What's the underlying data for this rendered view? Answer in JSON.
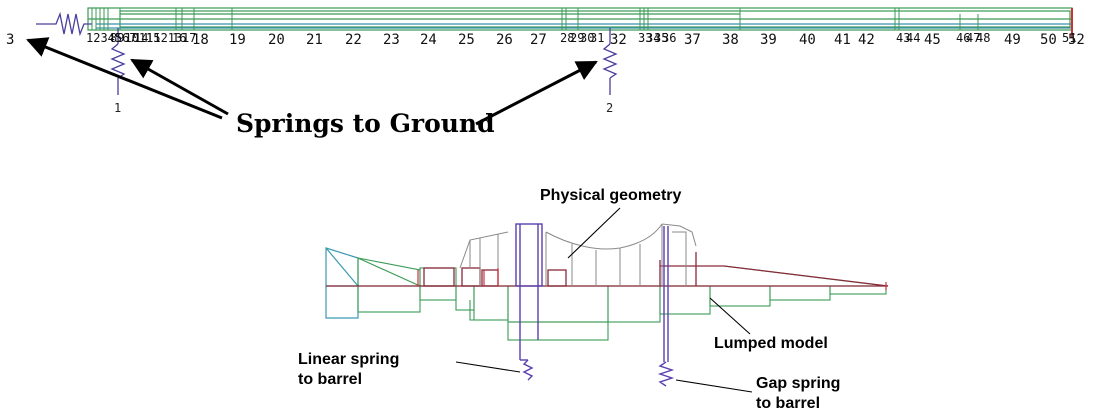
{
  "top_beam_model": {
    "node_numbers": [
      "18",
      "19",
      "20",
      "21",
      "22",
      "23",
      "24",
      "25",
      "26",
      "27",
      "32",
      "37",
      "38",
      "39",
      "40",
      "41",
      "42",
      "45",
      "49",
      "50",
      "52"
    ],
    "dense_node_clusters": [
      "1234567",
      "8910111213",
      "14",
      "15",
      "16",
      "17",
      "28",
      "29",
      "30",
      "31",
      "33",
      "34",
      "35",
      "36",
      "43",
      "44",
      "46",
      "47",
      "48",
      "51"
    ],
    "left_end_node": "3",
    "spring_ids": [
      "1",
      "2"
    ],
    "callout": "Springs to Ground",
    "colors": {
      "beam": "#3a9a55",
      "shaft": "#3a8fb0",
      "spring": "#4a3f9c",
      "end": "#cc3333"
    }
  },
  "bottom_geometry_model": {
    "label_physical": "Physical geometry",
    "label_lumped": "Lumped model",
    "label_linear_spring_line1": "Linear spring",
    "label_linear_spring_line2": "to barrel",
    "label_gap_spring_line1": "Gap spring",
    "label_gap_spring_line2": "to barrel",
    "colors": {
      "green": "#3a9a55",
      "maroon": "#8a2a3a",
      "purple": "#5a3fb0",
      "cyan": "#3a9ab0",
      "gray": "#888888",
      "red": "#d03040"
    }
  }
}
